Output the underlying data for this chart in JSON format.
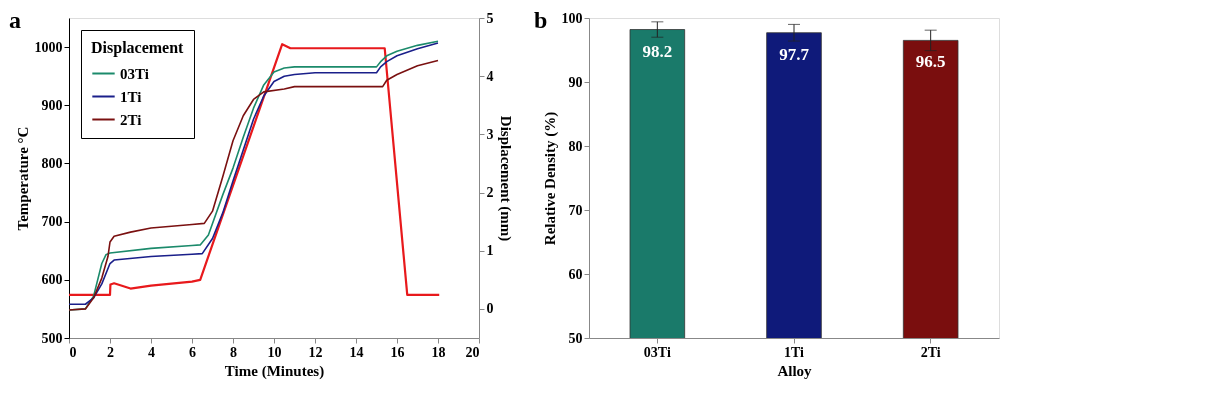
{
  "chart_data": [
    {
      "type": "line",
      "title": "a",
      "xlabel": "Time (Minutes)",
      "ylabel": "Temperature °C",
      "y2label": "Displacement (mm)",
      "legend_title": "Displacement",
      "legend": "top left",
      "grid": false,
      "line_style": "solid",
      "marker": "none",
      "xlim": [
        0,
        20
      ],
      "xticks": [
        0,
        2,
        4,
        6,
        8,
        10,
        12,
        14,
        16,
        18,
        20
      ],
      "ylim": [
        500,
        1050
      ],
      "yticks": [
        500,
        600,
        700,
        800,
        900,
        1000
      ],
      "y2lim": [
        -0.5,
        5
      ],
      "y2ticks": [
        0,
        1,
        2,
        3,
        4,
        5
      ],
      "series": [
        {
          "color": "#e8191c",
          "axis": "y",
          "x": [
            0,
            2.0,
            2.02,
            2.2,
            3,
            4,
            6,
            6.4,
            10.4,
            10.8,
            15.4,
            16.5,
            18.06
          ],
          "values": [
            574,
            574,
            592,
            594,
            585,
            590,
            597,
            600,
            1005,
            998,
            998,
            574,
            574
          ]
        },
        {
          "name": "03Ti",
          "color": "#1b8a6b",
          "axis": "y2",
          "x": [
            0,
            0.8,
            1.2,
            1.6,
            1.8,
            2,
            4,
            6,
            6.4,
            6.8,
            7.5,
            8,
            8.5,
            9,
            9.5,
            10,
            10.5,
            11,
            15,
            15.2,
            15.5,
            16,
            17,
            18
          ],
          "values": [
            -0.02,
            0,
            0.22,
            0.78,
            0.93,
            0.96,
            1.04,
            1.09,
            1.1,
            1.27,
            1.96,
            2.42,
            2.95,
            3.45,
            3.85,
            4.07,
            4.14,
            4.16,
            4.16,
            4.25,
            4.35,
            4.43,
            4.53,
            4.6
          ]
        },
        {
          "name": "1Ti",
          "color": "#1a1f8a",
          "axis": "y2",
          "x": [
            0,
            0.8,
            1.2,
            1.6,
            2,
            2.2,
            4,
            6,
            6.5,
            7,
            7.5,
            8,
            8.5,
            9,
            9.5,
            10,
            10.5,
            11,
            12,
            15,
            15.2,
            15.5,
            16,
            17,
            18
          ],
          "values": [
            0.08,
            0.08,
            0.19,
            0.43,
            0.78,
            0.84,
            0.9,
            0.94,
            0.95,
            1.21,
            1.65,
            2.2,
            2.73,
            3.26,
            3.66,
            3.91,
            4.0,
            4.03,
            4.06,
            4.06,
            4.16,
            4.25,
            4.35,
            4.47,
            4.57
          ]
        },
        {
          "name": "2Ti",
          "color": "#7a1010",
          "axis": "y2",
          "x": [
            0,
            0.8,
            1.2,
            1.6,
            1.9,
            2,
            2.2,
            3,
            4,
            6,
            6.6,
            7,
            7.5,
            8,
            8.5,
            9,
            9.5,
            10.5,
            11,
            15.3,
            15.5,
            16,
            17,
            18
          ],
          "values": [
            -0.02,
            0,
            0.19,
            0.53,
            0.9,
            1.15,
            1.25,
            1.32,
            1.39,
            1.45,
            1.47,
            1.68,
            2.27,
            2.89,
            3.32,
            3.6,
            3.73,
            3.78,
            3.82,
            3.82,
            3.93,
            4.03,
            4.18,
            4.27
          ]
        }
      ]
    },
    {
      "type": "bar",
      "title": "b",
      "xlabel": "Alloy",
      "ylabel": "Relative Density (%)",
      "grid": false,
      "data_labels": true,
      "categories": [
        "03Ti",
        "1Ti",
        "2Ti"
      ],
      "values": [
        98.2,
        97.7,
        96.5
      ],
      "colors": [
        "#1a7a6a",
        "#0f1a7a",
        "#7a0e0e"
      ],
      "errors": [
        1.2,
        1.3,
        1.6
      ],
      "ylim": [
        50,
        100
      ],
      "yticks": [
        50,
        60,
        70,
        80,
        90,
        100
      ]
    }
  ]
}
